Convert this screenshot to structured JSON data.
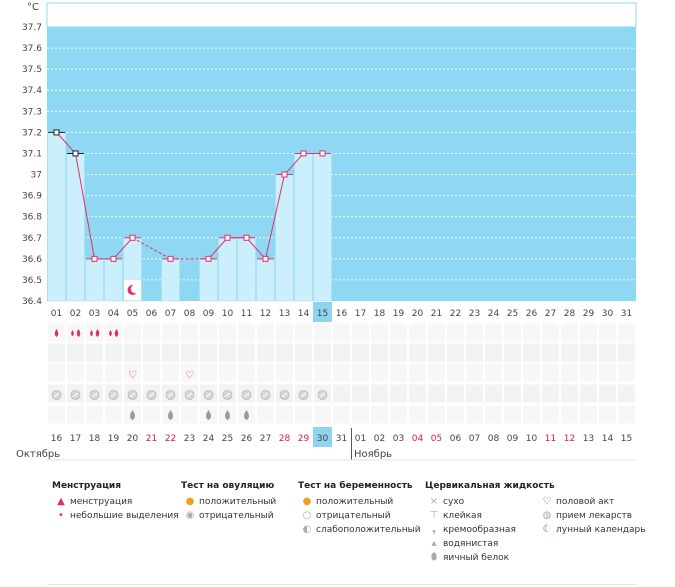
{
  "chart_data": {
    "type": "line",
    "ylabel": "°C",
    "ylim": [
      36.4,
      37.8
    ],
    "yticks": [
      "37.7",
      "37.6",
      "37.5",
      "37.4",
      "37.3",
      "37.2",
      "37.1",
      "37",
      "36.9",
      "36.8",
      "36.7",
      "36.6",
      "36.5",
      "36.4"
    ],
    "cycle_days": [
      "01",
      "02",
      "03",
      "04",
      "05",
      "06",
      "07",
      "08",
      "09",
      "10",
      "11",
      "12",
      "13",
      "14",
      "15",
      "16",
      "17",
      "18",
      "19",
      "20",
      "21",
      "22",
      "23",
      "24",
      "25",
      "26",
      "27",
      "28",
      "29",
      "30",
      "31"
    ],
    "current_day": "15",
    "temperatures": [
      {
        "day": 1,
        "value": 37.2
      },
      {
        "day": 2,
        "value": 37.1
      },
      {
        "day": 3,
        "value": 36.6
      },
      {
        "day": 4,
        "value": 36.6
      },
      {
        "day": 5,
        "value": 36.7
      },
      {
        "day": 7,
        "value": 36.6
      },
      {
        "day": 9,
        "value": 36.6
      },
      {
        "day": 10,
        "value": 36.7
      },
      {
        "day": 11,
        "value": 36.7
      },
      {
        "day": 12,
        "value": 36.6
      },
      {
        "day": 13,
        "value": 37.0
      },
      {
        "day": 14,
        "value": 37.1
      },
      {
        "day": 15,
        "value": 37.1
      }
    ],
    "dashed_gaps": [
      [
        5,
        7
      ],
      [
        7,
        9
      ]
    ],
    "moon_day": 5,
    "menstruation_days": [
      1,
      2,
      3,
      4
    ],
    "heart_days": [
      5,
      8
    ],
    "pill_days": [
      1,
      2,
      3,
      4,
      5,
      6,
      7,
      8,
      9,
      10,
      11,
      12,
      13,
      14,
      15
    ],
    "fluid_days": [
      5,
      7,
      9,
      10,
      11
    ],
    "calendar_dates": [
      "16",
      "17",
      "18",
      "19",
      "20",
      "21",
      "22",
      "23",
      "24",
      "25",
      "26",
      "27",
      "28",
      "29",
      "30",
      "31",
      "01",
      "02",
      "03",
      "04",
      "05",
      "06",
      "07",
      "08",
      "09",
      "10",
      "11",
      "12",
      "13",
      "14",
      "15"
    ],
    "red_dates": [
      5,
      6,
      12,
      13,
      19,
      20,
      26,
      27
    ],
    "month_labels": [
      {
        "label": "Октябрь",
        "start": 1
      },
      {
        "label": "Ноябрь",
        "start": 17
      }
    ]
  },
  "colors": {
    "sky": "#8ed8f4",
    "bar": "#cceffd",
    "line": "#e0306a",
    "highlight": "#8fd4ef"
  },
  "legend": {
    "menstruation": {
      "title": "Менструация",
      "items": [
        {
          "icon": "drop-icon",
          "label": "менструация"
        },
        {
          "icon": "small-drop-icon",
          "label": "небольшие выделения"
        }
      ]
    },
    "ovulation": {
      "title": "Тест на овуляцию",
      "items": [
        {
          "icon": "sun-icon",
          "label": "положительный"
        },
        {
          "icon": "grey-circle-icon",
          "label": "отрицательный"
        }
      ]
    },
    "pregnancy": {
      "title": "Тест на беременность",
      "items": [
        {
          "icon": "sun-icon",
          "label": "положительный"
        },
        {
          "icon": "grey-circle-icon",
          "label": "отрицательный"
        },
        {
          "icon": "half-circle-icon",
          "label": "слабоположительный"
        }
      ]
    },
    "fluid": {
      "title": "Цервикальная жидкость",
      "items": [
        {
          "icon": "cross-icon",
          "label": "сухо"
        },
        {
          "icon": "t-icon",
          "label": "клейкая"
        },
        {
          "icon": "comma-icon",
          "label": "кремообразная"
        },
        {
          "icon": "small-drop-icon",
          "label": "водянистая"
        },
        {
          "icon": "egg-icon",
          "label": "яичный белок"
        }
      ]
    },
    "misc": {
      "items": [
        {
          "icon": "heart-icon",
          "label": "половой акт"
        },
        {
          "icon": "pill-icon",
          "label": "прием лекарств"
        },
        {
          "icon": "moon-icon",
          "label": "лунный календарь"
        }
      ]
    }
  }
}
